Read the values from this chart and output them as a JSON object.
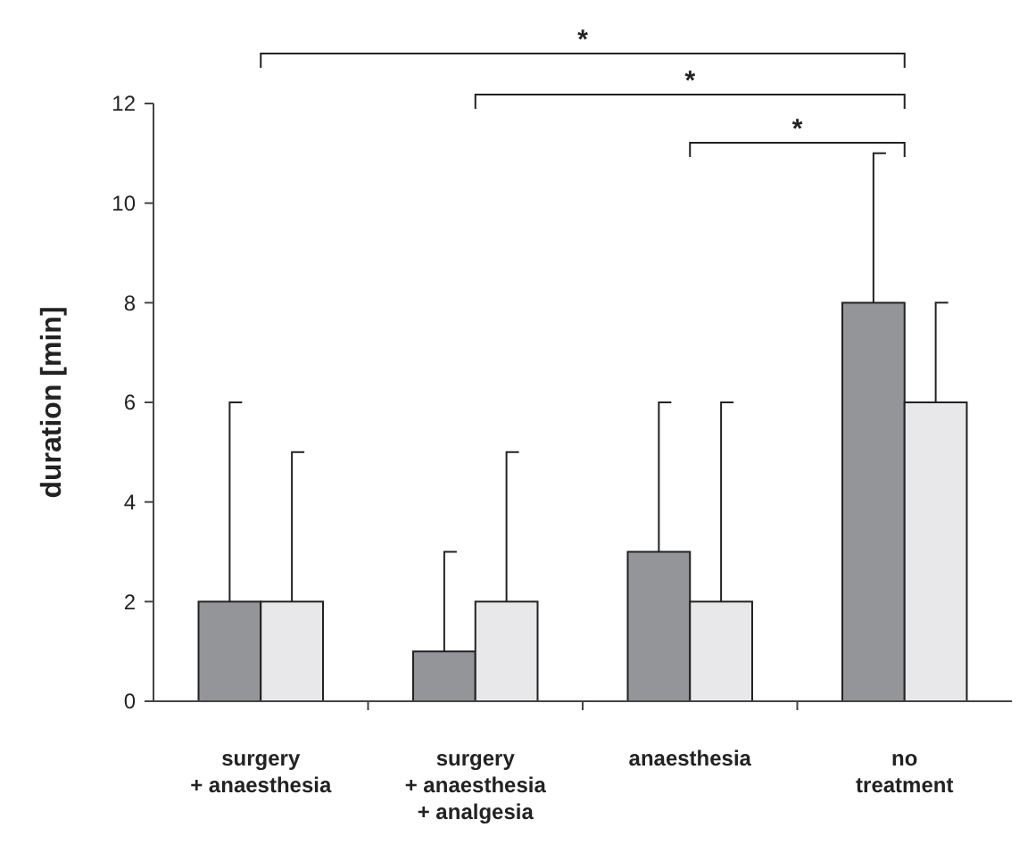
{
  "chart_data": {
    "type": "bar",
    "ylabel": "duration [min]",
    "categories": [
      "surgery\n+ anaesthesia",
      "surgery\n+ anaesthesia\n+ analgesia",
      "anaesthesia",
      "no\ntreatment"
    ],
    "series": [
      {
        "color": "#939598",
        "values": [
          2,
          1,
          3,
          8
        ],
        "errors": [
          [
            2,
            6
          ],
          [
            1,
            3
          ],
          [
            3,
            6
          ],
          [
            8,
            11
          ]
        ]
      },
      {
        "color": "#e8e8ea",
        "values": [
          2,
          2,
          2,
          6
        ],
        "errors": [
          [
            2,
            5
          ],
          [
            2,
            5
          ],
          [
            2,
            6
          ],
          [
            6,
            8
          ]
        ]
      }
    ],
    "ylim": [
      0,
      12
    ],
    "yticks": [
      0,
      2,
      4,
      6,
      8,
      10,
      12
    ],
    "grid": false,
    "annotations": [
      "*",
      "*",
      "*"
    ]
  }
}
